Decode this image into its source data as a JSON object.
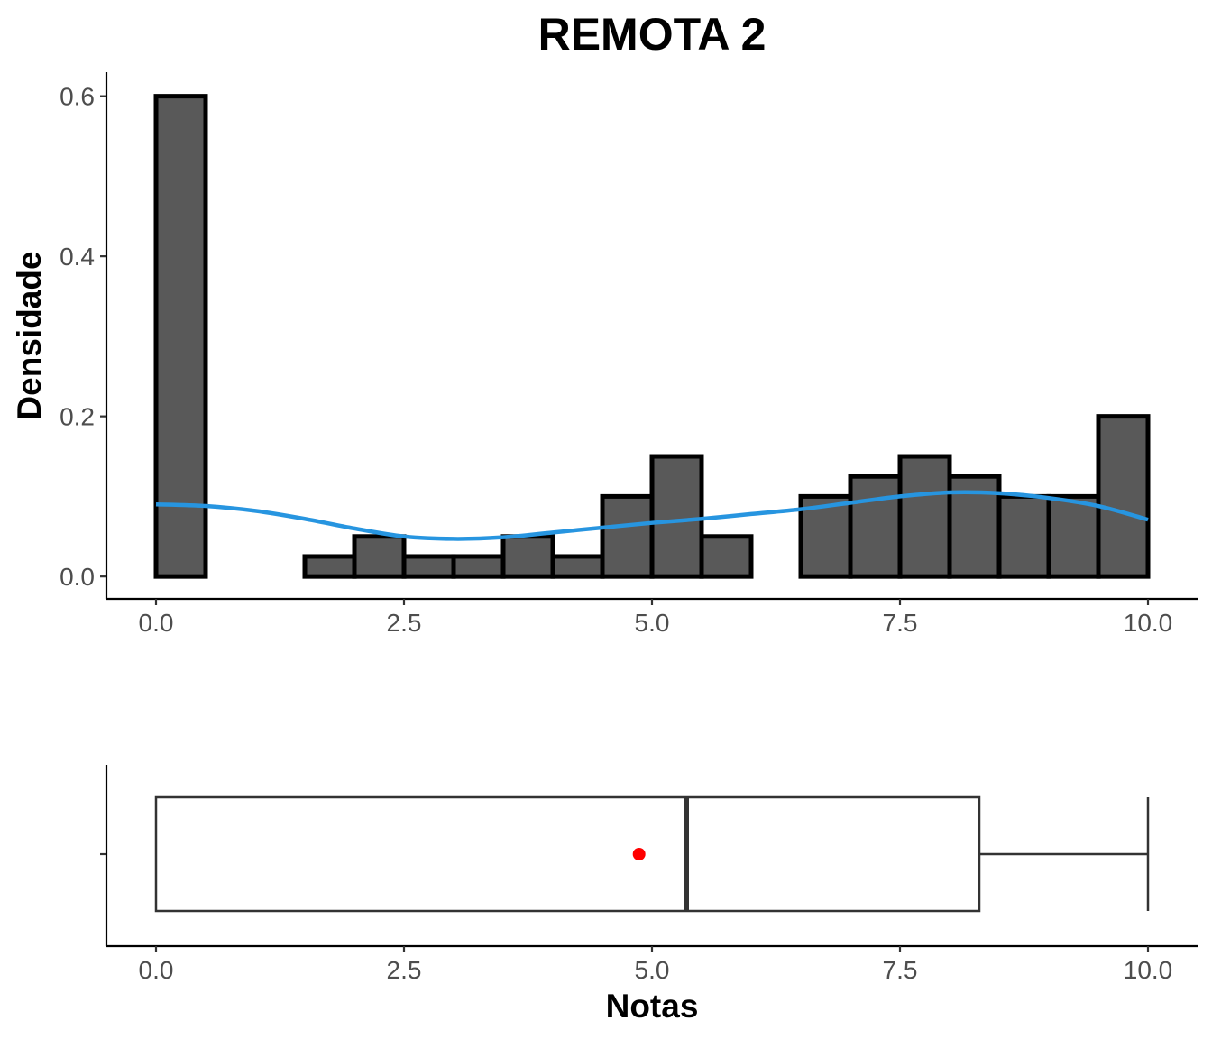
{
  "chart_data": [
    {
      "type": "bar",
      "subtype": "histogram",
      "title": "REMOTA 2",
      "ylabel": "Densidade",
      "xlabel": "",
      "xlim": [
        -0.5,
        10.5
      ],
      "ylim": [
        -0.028,
        0.63
      ],
      "x_ticks": [
        0.0,
        2.5,
        5.0,
        7.5,
        10.0
      ],
      "x_tick_labels": [
        "0.0",
        "2.5",
        "5.0",
        "7.5",
        "10.0"
      ],
      "y_ticks": [
        0.0,
        0.2,
        0.4,
        0.6
      ],
      "y_tick_labels": [
        "0.0",
        "0.2",
        "0.4",
        "0.6"
      ],
      "bins": [
        {
          "x0": 0.0,
          "x1": 0.5,
          "density": 0.6
        },
        {
          "x0": 0.5,
          "x1": 1.0,
          "density": 0.0
        },
        {
          "x0": 1.0,
          "x1": 1.5,
          "density": 0.0
        },
        {
          "x0": 1.5,
          "x1": 2.0,
          "density": 0.025
        },
        {
          "x0": 2.0,
          "x1": 2.5,
          "density": 0.05
        },
        {
          "x0": 2.5,
          "x1": 3.0,
          "density": 0.025
        },
        {
          "x0": 3.0,
          "x1": 3.5,
          "density": 0.025
        },
        {
          "x0": 3.5,
          "x1": 4.0,
          "density": 0.05
        },
        {
          "x0": 4.0,
          "x1": 4.5,
          "density": 0.025
        },
        {
          "x0": 4.5,
          "x1": 5.0,
          "density": 0.1
        },
        {
          "x0": 5.0,
          "x1": 5.5,
          "density": 0.15
        },
        {
          "x0": 5.5,
          "x1": 6.0,
          "density": 0.05
        },
        {
          "x0": 6.0,
          "x1": 6.5,
          "density": 0.0
        },
        {
          "x0": 6.5,
          "x1": 7.0,
          "density": 0.1
        },
        {
          "x0": 7.0,
          "x1": 7.5,
          "density": 0.125
        },
        {
          "x0": 7.5,
          "x1": 8.0,
          "density": 0.15
        },
        {
          "x0": 8.0,
          "x1": 8.5,
          "density": 0.125
        },
        {
          "x0": 8.5,
          "x1": 9.0,
          "density": 0.1
        },
        {
          "x0": 9.0,
          "x1": 9.5,
          "density": 0.1
        },
        {
          "x0": 9.5,
          "x1": 10.0,
          "density": 0.2
        }
      ],
      "bar_fill": "#595959",
      "bar_edge": "#000000",
      "density_curve": {
        "color": "#2795e0",
        "x": [
          0.0,
          0.5,
          1.0,
          1.5,
          2.0,
          2.5,
          3.0,
          3.5,
          4.0,
          4.5,
          5.0,
          5.5,
          6.0,
          6.5,
          7.0,
          7.5,
          8.0,
          8.5,
          9.0,
          9.5,
          10.0
        ],
        "y": [
          0.09,
          0.088,
          0.082,
          0.072,
          0.06,
          0.05,
          0.047,
          0.049,
          0.055,
          0.061,
          0.067,
          0.072,
          0.078,
          0.084,
          0.092,
          0.1,
          0.105,
          0.104,
          0.098,
          0.088,
          0.071
        ]
      }
    },
    {
      "type": "boxplot",
      "xlabel": "Notas",
      "xlim": [
        -0.5,
        10.5
      ],
      "x_ticks": [
        0.0,
        2.5,
        5.0,
        7.5,
        10.0
      ],
      "x_tick_labels": [
        "0.0",
        "2.5",
        "5.0",
        "7.5",
        "10.0"
      ],
      "min": 0.0,
      "q1": 0.0,
      "median": 5.35,
      "q3": 8.3,
      "max": 10.0,
      "mean": 4.87,
      "mean_color": "#ff0000"
    }
  ]
}
